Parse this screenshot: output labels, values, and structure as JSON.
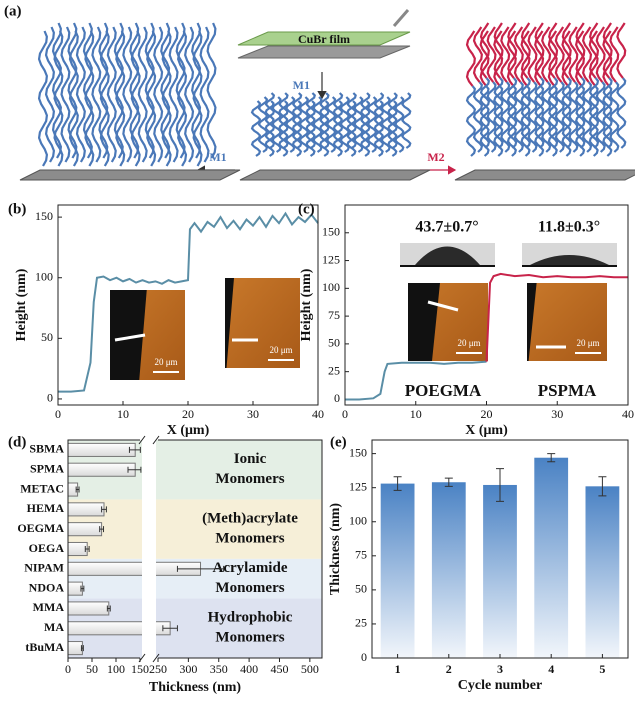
{
  "diagram": {
    "panel": "(a)",
    "film": "CuBr film",
    "arrow_down": "M1",
    "arrow_left": "M1",
    "arrow_right": "M2"
  },
  "chart_data": [
    {
      "panel": "(b)",
      "type": "line",
      "xlabel": "X (μm)",
      "ylabel": "Height (nm)",
      "xlim": [
        0,
        40
      ],
      "xticks": [
        0,
        10,
        20,
        30,
        40
      ],
      "ylim": [
        -5,
        160
      ],
      "yticks": [
        0,
        50,
        100,
        150
      ],
      "series": [
        {
          "color": "#5a8ea6",
          "x": [
            0,
            2,
            4,
            5,
            5.5,
            6,
            7,
            8,
            9,
            10,
            11,
            12,
            13,
            14,
            15,
            16,
            17,
            18,
            19,
            20,
            20.3,
            21,
            22,
            23,
            24,
            25,
            26,
            27,
            28,
            29,
            30,
            31,
            32,
            33,
            34,
            35,
            36,
            37,
            38,
            39,
            40
          ],
          "values": [
            6,
            6,
            7,
            30,
            80,
            100,
            101,
            98,
            100,
            97,
            99,
            96,
            98,
            96,
            97,
            95,
            98,
            96,
            97,
            98,
            140,
            145,
            138,
            146,
            142,
            150,
            141,
            147,
            140,
            148,
            143,
            150,
            142,
            151,
            145,
            153,
            144,
            150,
            146,
            152,
            145
          ]
        }
      ],
      "annotations": [
        "20 μm",
        "20 μm"
      ]
    },
    {
      "panel": "(c)",
      "type": "line",
      "xlabel": "X (μm)",
      "ylabel": "Height (nm)",
      "xlim": [
        0,
        40
      ],
      "xticks": [
        0,
        10,
        20,
        30,
        40
      ],
      "ylim": [
        -5,
        175
      ],
      "yticks": [
        0,
        25,
        50,
        75,
        100,
        125,
        150
      ],
      "series": [
        {
          "name": "POEGMA",
          "color": "#5a8ea6",
          "x": [
            0,
            2,
            4,
            5,
            5.6,
            6,
            8,
            10,
            12,
            14,
            16,
            18,
            20
          ],
          "values": [
            0,
            0,
            1,
            5,
            25,
            32,
            33,
            33,
            33,
            32,
            33,
            33,
            34
          ]
        },
        {
          "name": "PSPMA",
          "color": "#c8234a",
          "x": [
            20,
            20.5,
            21,
            22,
            24,
            26,
            28,
            30,
            32,
            34,
            36,
            38,
            40
          ],
          "values": [
            34,
            105,
            111,
            113,
            111,
            112,
            110,
            111,
            110,
            110,
            111,
            110,
            110
          ]
        }
      ],
      "annotations": [
        "43.7±0.7°",
        "11.8±0.3°",
        "20 μm",
        "20 μm"
      ]
    },
    {
      "panel": "(d)",
      "type": "barh",
      "xlabel": "Thickness (nm)",
      "categories": [
        "SBMA",
        "SPMA",
        "METAC",
        "HEMA",
        "OEGMA",
        "OEGA",
        "NIPAM",
        "NDOA",
        "MMA",
        "MA",
        "tBuMA"
      ],
      "values": [
        140,
        140,
        20,
        75,
        70,
        40,
        320,
        30,
        85,
        270,
        30
      ],
      "errors": [
        12,
        15,
        3,
        5,
        4,
        4,
        38,
        3,
        3,
        12,
        2
      ],
      "xlim": [
        0,
        520
      ],
      "xbreak": [
        150,
        250
      ],
      "xticks": [
        0,
        50,
        100,
        150,
        250,
        300,
        350,
        400,
        450,
        500
      ],
      "groups": [
        {
          "label": [
            "Ionic",
            "Monomers"
          ],
          "span": 3,
          "color": "#e4efe5"
        },
        {
          "label": [
            "(Meth)acrylate",
            "Monomers"
          ],
          "span": 3,
          "color": "#f6efd8"
        },
        {
          "label": [
            "Acrylamide",
            "Monomers"
          ],
          "span": 2,
          "color": "#e6eef6"
        },
        {
          "label": [
            "Hydrophobic",
            "Monomers"
          ],
          "span": 3,
          "color": "#dde2f0"
        }
      ]
    },
    {
      "panel": "(e)",
      "type": "bar",
      "xlabel": "Cycle number",
      "ylabel": "Thickness (nm)",
      "categories": [
        "1",
        "2",
        "3",
        "4",
        "5"
      ],
      "values": [
        128,
        129,
        127,
        147,
        126
      ],
      "errors": [
        5,
        3,
        12,
        3,
        7
      ],
      "color": "#4a82c4",
      "ylim": [
        0,
        160
      ],
      "yticks": [
        0,
        25,
        50,
        75,
        100,
        125,
        150
      ]
    }
  ]
}
